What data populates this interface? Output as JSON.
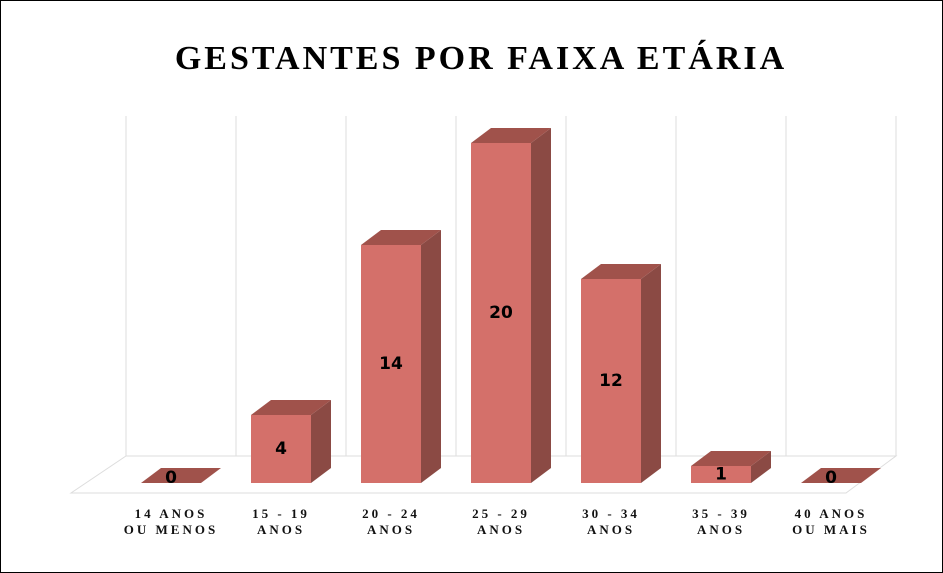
{
  "chart_data": {
    "type": "bar3d",
    "title": "GESTANTES POR FAIXA ETÁRIA",
    "categories": [
      "14 ANOS OU MENOS",
      "15 - 19 ANOS",
      "20 - 24 ANOS",
      "25 - 29 ANOS",
      "30 - 34 ANOS",
      "35 - 39 ANOS",
      "40 ANOS OU MAIS"
    ],
    "values": [
      0,
      4,
      14,
      20,
      12,
      1,
      0
    ],
    "color": "#d4706a",
    "grid": true
  }
}
